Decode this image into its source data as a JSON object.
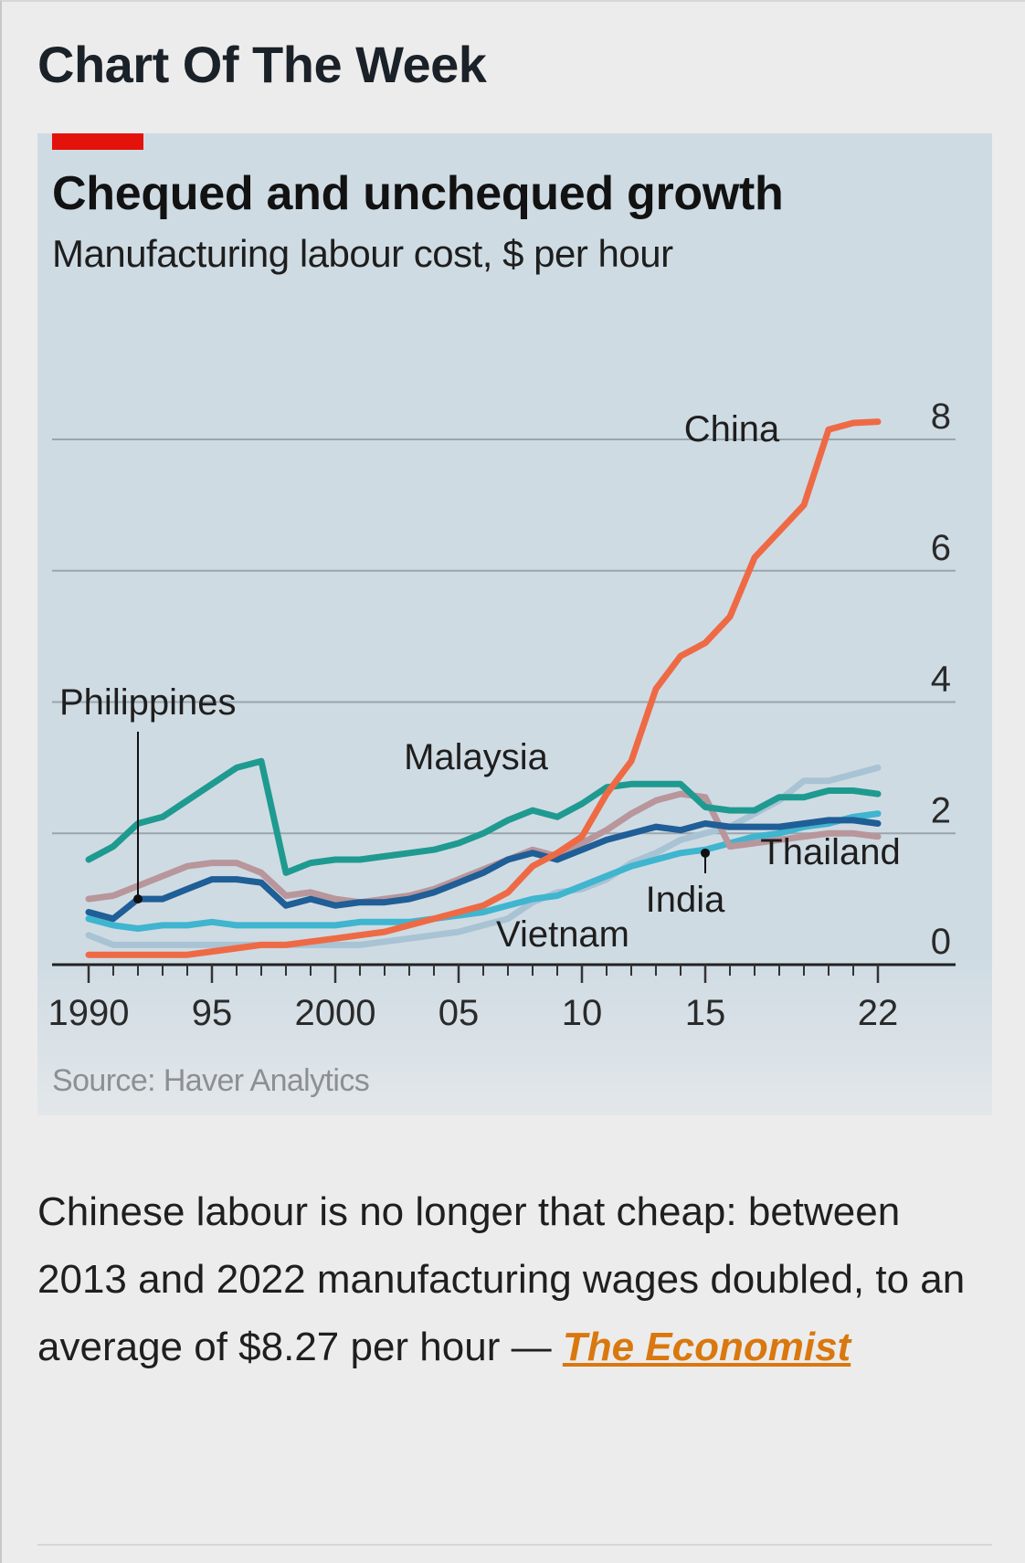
{
  "page": {
    "title": "Chart Of The Week"
  },
  "chart_data": {
    "type": "line",
    "title": "Chequed and unchequed growth",
    "subtitle": "Manufacturing labour cost, $ per hour",
    "source": "Source: Haver Analytics",
    "xlabel": "",
    "ylabel": "",
    "xlim": [
      1990,
      2022
    ],
    "ylim": [
      0,
      8
    ],
    "y_ticks": [
      0,
      2,
      4,
      6,
      8
    ],
    "y_tick_labels": [
      "0",
      "2",
      "4",
      "6",
      "8"
    ],
    "x_ticks": [
      1990,
      1995,
      2000,
      2005,
      2010,
      2015,
      2022
    ],
    "x_tick_labels": [
      "1990",
      "95",
      "2000",
      "05",
      "10",
      "15",
      "22"
    ],
    "y_axis_side": "right",
    "grid": "horizontal",
    "legend": "direct labels",
    "series": [
      {
        "name": "Philippines",
        "color": "#1f5e96",
        "x": [
          1990,
          1991,
          1992,
          1993,
          1994,
          1995,
          1996,
          1997,
          1998,
          1999,
          2000,
          2001,
          2002,
          2003,
          2004,
          2005,
          2006,
          2007,
          2008,
          2009,
          2010,
          2011,
          2012,
          2013,
          2014,
          2015,
          2016,
          2017,
          2018,
          2019,
          2020,
          2021,
          2022
        ],
        "values": [
          0.8,
          0.7,
          1.0,
          1.0,
          1.15,
          1.3,
          1.3,
          1.25,
          0.9,
          1.0,
          0.9,
          0.95,
          0.95,
          1.0,
          1.1,
          1.25,
          1.4,
          1.6,
          1.7,
          1.6,
          1.75,
          1.9,
          2.0,
          2.1,
          2.05,
          2.15,
          2.1,
          2.1,
          2.1,
          2.15,
          2.2,
          2.2,
          2.15
        ]
      },
      {
        "name": "Malaysia",
        "color": "#1f9a90",
        "x": [
          1990,
          1991,
          1992,
          1993,
          1994,
          1995,
          1996,
          1997,
          1998,
          1999,
          2000,
          2001,
          2002,
          2003,
          2004,
          2005,
          2006,
          2007,
          2008,
          2009,
          2010,
          2011,
          2012,
          2013,
          2014,
          2015,
          2016,
          2017,
          2018,
          2019,
          2020,
          2021,
          2022
        ],
        "values": [
          1.6,
          1.8,
          2.15,
          2.25,
          2.5,
          2.75,
          3.0,
          3.1,
          1.4,
          1.55,
          1.6,
          1.6,
          1.65,
          1.7,
          1.75,
          1.85,
          2.0,
          2.2,
          2.35,
          2.25,
          2.45,
          2.7,
          2.75,
          2.75,
          2.75,
          2.4,
          2.35,
          2.35,
          2.55,
          2.55,
          2.65,
          2.65,
          2.6
        ]
      },
      {
        "name": "China",
        "color": "#ee6a45",
        "x": [
          1990,
          1991,
          1992,
          1993,
          1994,
          1995,
          1996,
          1997,
          1998,
          1999,
          2000,
          2001,
          2002,
          2003,
          2004,
          2005,
          2006,
          2007,
          2008,
          2009,
          2010,
          2011,
          2012,
          2013,
          2014,
          2015,
          2016,
          2017,
          2018,
          2019,
          2020,
          2021,
          2022
        ],
        "values": [
          0.15,
          0.15,
          0.15,
          0.15,
          0.15,
          0.2,
          0.25,
          0.3,
          0.3,
          0.35,
          0.4,
          0.45,
          0.5,
          0.6,
          0.7,
          0.8,
          0.9,
          1.1,
          1.5,
          1.7,
          1.95,
          2.6,
          3.1,
          4.2,
          4.7,
          4.9,
          5.3,
          6.2,
          6.6,
          7.0,
          8.15,
          8.25,
          8.27
        ]
      },
      {
        "name": "Thailand",
        "color": "#b8969b",
        "x": [
          1990,
          1991,
          1992,
          1993,
          1994,
          1995,
          1996,
          1997,
          1998,
          1999,
          2000,
          2001,
          2002,
          2003,
          2004,
          2005,
          2006,
          2007,
          2008,
          2009,
          2010,
          2011,
          2012,
          2013,
          2014,
          2015,
          2016,
          2017,
          2018,
          2019,
          2020,
          2021,
          2022
        ],
        "values": [
          1.0,
          1.05,
          1.2,
          1.35,
          1.5,
          1.55,
          1.55,
          1.4,
          1.05,
          1.1,
          1.0,
          0.95,
          1.0,
          1.05,
          1.15,
          1.3,
          1.45,
          1.6,
          1.75,
          1.65,
          1.85,
          2.05,
          2.3,
          2.5,
          2.6,
          2.55,
          1.8,
          1.85,
          1.9,
          1.95,
          2.0,
          2.0,
          1.95
        ]
      },
      {
        "name": "India",
        "color": "#3fb5cf",
        "x": [
          1990,
          1991,
          1992,
          1993,
          1994,
          1995,
          1996,
          1997,
          1998,
          1999,
          2000,
          2001,
          2002,
          2003,
          2004,
          2005,
          2006,
          2007,
          2008,
          2009,
          2010,
          2011,
          2012,
          2013,
          2014,
          2015,
          2016,
          2017,
          2018,
          2019,
          2020,
          2021,
          2022
        ],
        "values": [
          0.7,
          0.6,
          0.55,
          0.6,
          0.6,
          0.65,
          0.6,
          0.6,
          0.6,
          0.6,
          0.6,
          0.65,
          0.65,
          0.65,
          0.7,
          0.75,
          0.8,
          0.9,
          1.0,
          1.05,
          1.2,
          1.35,
          1.5,
          1.6,
          1.7,
          1.75,
          1.85,
          1.95,
          2.0,
          2.1,
          2.15,
          2.25,
          2.3
        ]
      },
      {
        "name": "Vietnam",
        "color": "#a8c3d4",
        "x": [
          1990,
          1991,
          1992,
          1993,
          1994,
          1995,
          1996,
          1997,
          1998,
          1999,
          2000,
          2001,
          2002,
          2003,
          2004,
          2005,
          2006,
          2007,
          2008,
          2009,
          2010,
          2011,
          2012,
          2013,
          2014,
          2015,
          2016,
          2017,
          2018,
          2019,
          2020,
          2021,
          2022
        ],
        "values": [
          0.45,
          0.3,
          0.3,
          0.3,
          0.3,
          0.3,
          0.3,
          0.3,
          0.3,
          0.3,
          0.3,
          0.3,
          0.35,
          0.4,
          0.45,
          0.5,
          0.6,
          0.7,
          0.95,
          1.1,
          1.15,
          1.3,
          1.55,
          1.7,
          1.9,
          2.0,
          2.1,
          2.3,
          2.5,
          2.8,
          2.8,
          2.9,
          3.0
        ]
      }
    ],
    "annotations": [
      {
        "text": "China",
        "series": "China"
      },
      {
        "text": "Philippines",
        "series": "Philippines",
        "leader_x": 1992,
        "leader_y": 1.0
      },
      {
        "text": "Malaysia",
        "series": "Malaysia"
      },
      {
        "text": "Thailand",
        "series": "Thailand"
      },
      {
        "text": "India",
        "series": "India",
        "leader_x": 2015,
        "leader_y": 1.7
      },
      {
        "text": "Vietnam",
        "series": "Vietnam"
      }
    ]
  },
  "caption": {
    "text": "Chinese labour is no longer that cheap: between 2013 and 2022 manufacturing wages doubled, to an average of $8.27 per hour — ",
    "link_text": "The Economist"
  },
  "colors": {
    "background": "#ececec",
    "chart_background": "#cfdbe3",
    "accent_red": "#e3120b",
    "link": "#d9780f"
  }
}
